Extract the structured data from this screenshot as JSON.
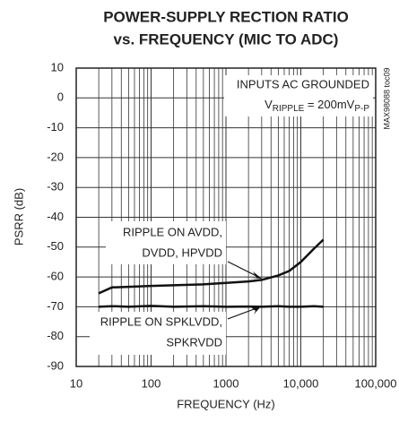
{
  "chart_data": {
    "type": "line",
    "title": [
      "POWER-SUPPLY RECTION RATIO",
      "vs. FREQUENCY (MIC TO ADC)"
    ],
    "xlabel": "FREQUENCY (Hz)",
    "ylabel": "PSRR (dB)",
    "x": [
      20,
      30,
      50,
      100,
      200,
      500,
      1000,
      2000,
      3000,
      5000,
      7000,
      10000,
      15000,
      20000
    ],
    "series": [
      {
        "name": "RIPPLE ON AVDD, DVDD, HPVDD",
        "color": "#111111",
        "values": [
          -65.5,
          -63.5,
          -63.3,
          -63,
          -62.8,
          -62.5,
          -62,
          -61.5,
          -61,
          -59.5,
          -58,
          -55,
          -50.5,
          -47.5
        ]
      },
      {
        "name": "RIPPLE ON SPKLVDD, SPKRVDD",
        "color": "#111111",
        "values": [
          -70,
          -69.8,
          -70,
          -69.7,
          -70,
          -69.8,
          -70,
          -69.9,
          -70,
          -69.8,
          -70,
          -70,
          -69.8,
          -70
        ]
      }
    ],
    "labels": [
      [
        "RIPPLE ON AVDD,",
        "DVDD, HPVDD"
      ],
      [
        "RIPPLE ON SPKLVDD,",
        "SPKRVDD"
      ]
    ],
    "annotations": {
      "conditions": "INPUTS AC GROUNDED",
      "ripple": [
        "V",
        "RIPPLE",
        " = 200mV",
        "P-P"
      ],
      "figure_id": "MAX98088 toc09"
    },
    "xscale": "log",
    "xlim": [
      10,
      100000
    ],
    "xticks": [
      10,
      100,
      1000,
      {
        "value": 10000,
        "label": "10,000"
      },
      {
        "value": 100000,
        "label": "100,000"
      }
    ],
    "ylim": [
      -90,
      10
    ],
    "yticks": [
      -90,
      -80,
      -70,
      -60,
      -50,
      -40,
      -30,
      -20,
      -10,
      0,
      10
    ],
    "grid": true
  }
}
